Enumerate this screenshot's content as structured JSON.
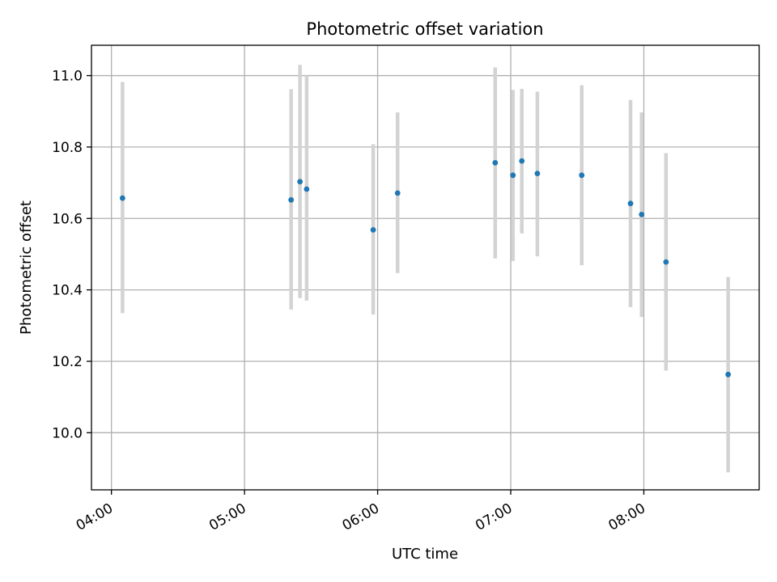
{
  "chart_data": {
    "type": "scatter",
    "title": "Photometric offset variation",
    "xlabel": "UTC time",
    "ylabel": "Photometric offset",
    "x_tick_labels": [
      "04:00",
      "05:00",
      "06:00",
      "07:00",
      "08:00"
    ],
    "x_ticks": [
      "04:00",
      "05:00",
      "06:00",
      "07:00",
      "08:00"
    ],
    "y_ticks": [
      10.0,
      10.2,
      10.4,
      10.6,
      10.8,
      11.0
    ],
    "y_tick_labels": [
      "10.0",
      "10.2",
      "10.4",
      "10.6",
      "10.8",
      "11.0"
    ],
    "xlim": [
      "03:51",
      "08:52"
    ],
    "ylim": [
      9.84,
      11.085
    ],
    "grid": true,
    "marker_color": "#1f77b4",
    "errorbar_color": "#d3d3d3",
    "points": [
      {
        "x": "04:05",
        "y": 10.657,
        "yerr_low": 10.335,
        "yerr_high": 10.982
      },
      {
        "x": "05:21",
        "y": 10.652,
        "yerr_low": 10.345,
        "yerr_high": 10.962
      },
      {
        "x": "05:25",
        "y": 10.703,
        "yerr_low": 10.377,
        "yerr_high": 11.03
      },
      {
        "x": "05:28",
        "y": 10.682,
        "yerr_low": 10.37,
        "yerr_high": 11.0
      },
      {
        "x": "05:58",
        "y": 10.568,
        "yerr_low": 10.331,
        "yerr_high": 10.808
      },
      {
        "x": "06:09",
        "y": 10.671,
        "yerr_low": 10.447,
        "yerr_high": 10.897
      },
      {
        "x": "06:53",
        "y": 10.756,
        "yerr_low": 10.488,
        "yerr_high": 11.023
      },
      {
        "x": "07:01",
        "y": 10.721,
        "yerr_low": 10.481,
        "yerr_high": 10.96
      },
      {
        "x": "07:05",
        "y": 10.761,
        "yerr_low": 10.558,
        "yerr_high": 10.963
      },
      {
        "x": "07:12",
        "y": 10.726,
        "yerr_low": 10.494,
        "yerr_high": 10.955
      },
      {
        "x": "07:32",
        "y": 10.721,
        "yerr_low": 10.469,
        "yerr_high": 10.973
      },
      {
        "x": "07:54",
        "y": 10.642,
        "yerr_low": 10.352,
        "yerr_high": 10.932
      },
      {
        "x": "07:59",
        "y": 10.611,
        "yerr_low": 10.324,
        "yerr_high": 10.897
      },
      {
        "x": "08:10",
        "y": 10.478,
        "yerr_low": 10.174,
        "yerr_high": 10.783
      },
      {
        "x": "08:38",
        "y": 10.163,
        "yerr_low": 9.889,
        "yerr_high": 10.436
      }
    ]
  }
}
